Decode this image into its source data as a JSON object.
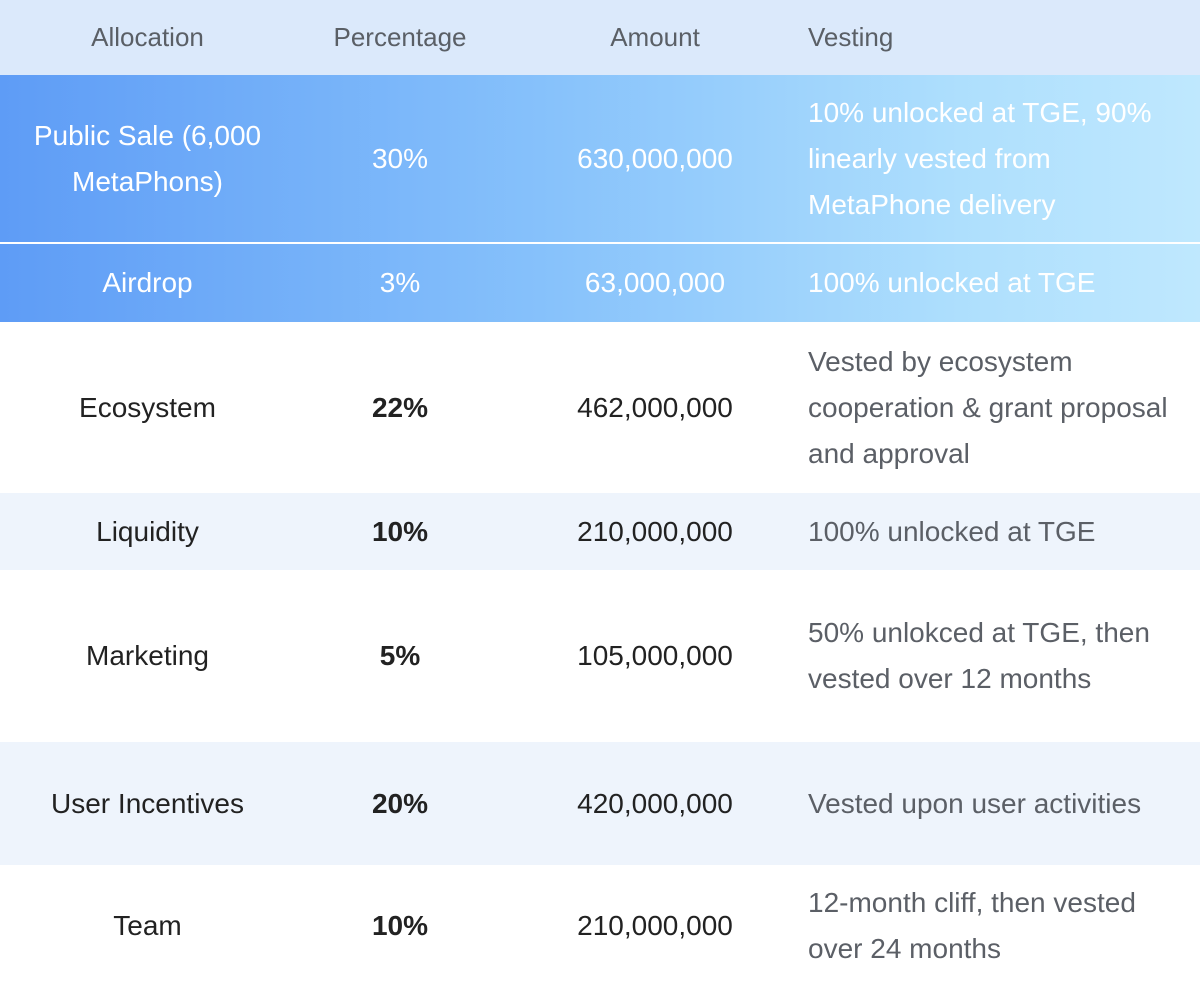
{
  "table": {
    "header": [
      "Allocation",
      "Percentage",
      "Amount",
      "Vesting"
    ],
    "rows": [
      [
        "Public Sale (6,000 MetaPhons)",
        "30%",
        "630,000,000",
        "10% unlocked at TGE, 90% linearly vested from MetaPhone delivery"
      ],
      [
        "Airdrop",
        "3%",
        "63,000,000",
        "100% unlocked at TGE"
      ],
      [
        "Ecosystem",
        "22%",
        "462,000,000",
        "Vested by ecosystem cooperation & grant proposal and approval"
      ],
      [
        "Liquidity",
        "10%",
        "210,000,000",
        "100% unlocked at TGE"
      ],
      [
        "Marketing",
        "5%",
        "105,000,000",
        "50% unlokced at TGE, then vested over 12 months"
      ],
      [
        "User Incentives",
        "20%",
        "420,000,000",
        "Vested upon user activities"
      ],
      [
        "Team",
        "10%",
        "210,000,000",
        "12-month cliff, then vested over 24 months"
      ]
    ]
  }
}
